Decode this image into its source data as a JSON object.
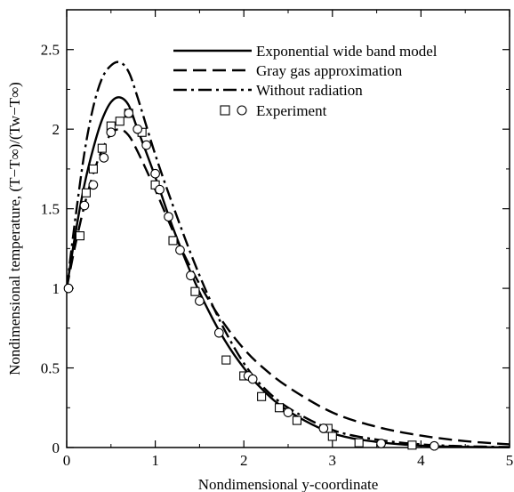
{
  "chart_data": {
    "type": "line",
    "title": "",
    "xlabel": "Nondimensional y-coordinate",
    "ylabel": "Nondimensional temperature, (T−T∞)/(Tw−T∞)",
    "xlim": [
      0,
      5
    ],
    "ylim": [
      0,
      2.75
    ],
    "xticks": [
      0,
      1,
      2,
      3,
      4,
      5
    ],
    "xtick_labels": [
      "0",
      "1",
      "2",
      "3",
      "4",
      "5"
    ],
    "yticks": [
      0,
      0.5,
      1,
      1.5,
      2,
      2.5
    ],
    "ytick_labels": [
      "0",
      "0.5",
      "1",
      "1.5",
      "2",
      "2.5"
    ],
    "grid": false,
    "legend_position": "top-right",
    "series": [
      {
        "name": "Exponential wide band model",
        "style": "solid",
        "x": [
          0,
          0.1,
          0.2,
          0.3,
          0.4,
          0.5,
          0.6,
          0.7,
          0.8,
          1.0,
          1.2,
          1.4,
          1.6,
          1.8,
          2.0,
          2.2,
          2.5,
          3.0,
          3.5,
          4.0,
          4.5,
          5.0
        ],
        "y": [
          1.0,
          1.35,
          1.65,
          1.88,
          2.06,
          2.17,
          2.2,
          2.15,
          2.0,
          1.7,
          1.38,
          1.1,
          0.86,
          0.66,
          0.5,
          0.37,
          0.23,
          0.09,
          0.035,
          0.012,
          0.004,
          0.001
        ]
      },
      {
        "name": "Gray gas approximation",
        "style": "dashed",
        "x": [
          0,
          0.1,
          0.2,
          0.3,
          0.4,
          0.5,
          0.6,
          0.7,
          0.8,
          1.0,
          1.2,
          1.4,
          1.6,
          1.8,
          2.0,
          2.2,
          2.5,
          3.0,
          3.5,
          4.0,
          4.5,
          5.0
        ],
        "y": [
          1.0,
          1.28,
          1.52,
          1.72,
          1.87,
          1.97,
          2.0,
          1.96,
          1.86,
          1.62,
          1.36,
          1.13,
          0.93,
          0.76,
          0.62,
          0.51,
          0.38,
          0.22,
          0.13,
          0.075,
          0.04,
          0.02
        ]
      },
      {
        "name": "Without radiation",
        "style": "dashdot",
        "x": [
          0,
          0.1,
          0.2,
          0.3,
          0.4,
          0.5,
          0.6,
          0.7,
          0.8,
          1.0,
          1.2,
          1.4,
          1.6,
          1.8,
          2.0,
          2.2,
          2.5,
          3.0,
          3.5,
          4.0,
          4.5,
          5.0
        ],
        "y": [
          1.0,
          1.45,
          1.85,
          2.14,
          2.32,
          2.4,
          2.42,
          2.36,
          2.2,
          1.84,
          1.52,
          1.22,
          0.95,
          0.72,
          0.53,
          0.39,
          0.25,
          0.11,
          0.05,
          0.02,
          0.008,
          0.003
        ]
      },
      {
        "name": "Experiment",
        "style": "markers",
        "markers_square": {
          "x": [
            0.15,
            0.22,
            0.3,
            0.4,
            0.5,
            0.6,
            0.7,
            0.85,
            1.0,
            1.2,
            1.45,
            1.8,
            2.0,
            2.2,
            2.4,
            2.6,
            2.95,
            3.0,
            3.3,
            3.9
          ],
          "y": [
            1.33,
            1.6,
            1.75,
            1.88,
            2.02,
            2.05,
            2.1,
            1.98,
            1.65,
            1.3,
            0.98,
            0.55,
            0.45,
            0.32,
            0.25,
            0.17,
            0.12,
            0.07,
            0.03,
            0.015
          ]
        },
        "markers_circle": {
          "x": [
            0.02,
            0.2,
            0.3,
            0.42,
            0.5,
            0.7,
            0.8,
            0.9,
            1.0,
            1.05,
            1.15,
            1.28,
            1.4,
            1.5,
            1.72,
            2.05,
            2.1,
            2.5,
            2.9,
            3.55,
            4.15
          ],
          "y": [
            1.0,
            1.52,
            1.65,
            1.82,
            1.98,
            2.1,
            2.0,
            1.9,
            1.72,
            1.62,
            1.45,
            1.24,
            1.08,
            0.92,
            0.72,
            0.45,
            0.43,
            0.22,
            0.12,
            0.025,
            0.01
          ]
        }
      }
    ]
  }
}
